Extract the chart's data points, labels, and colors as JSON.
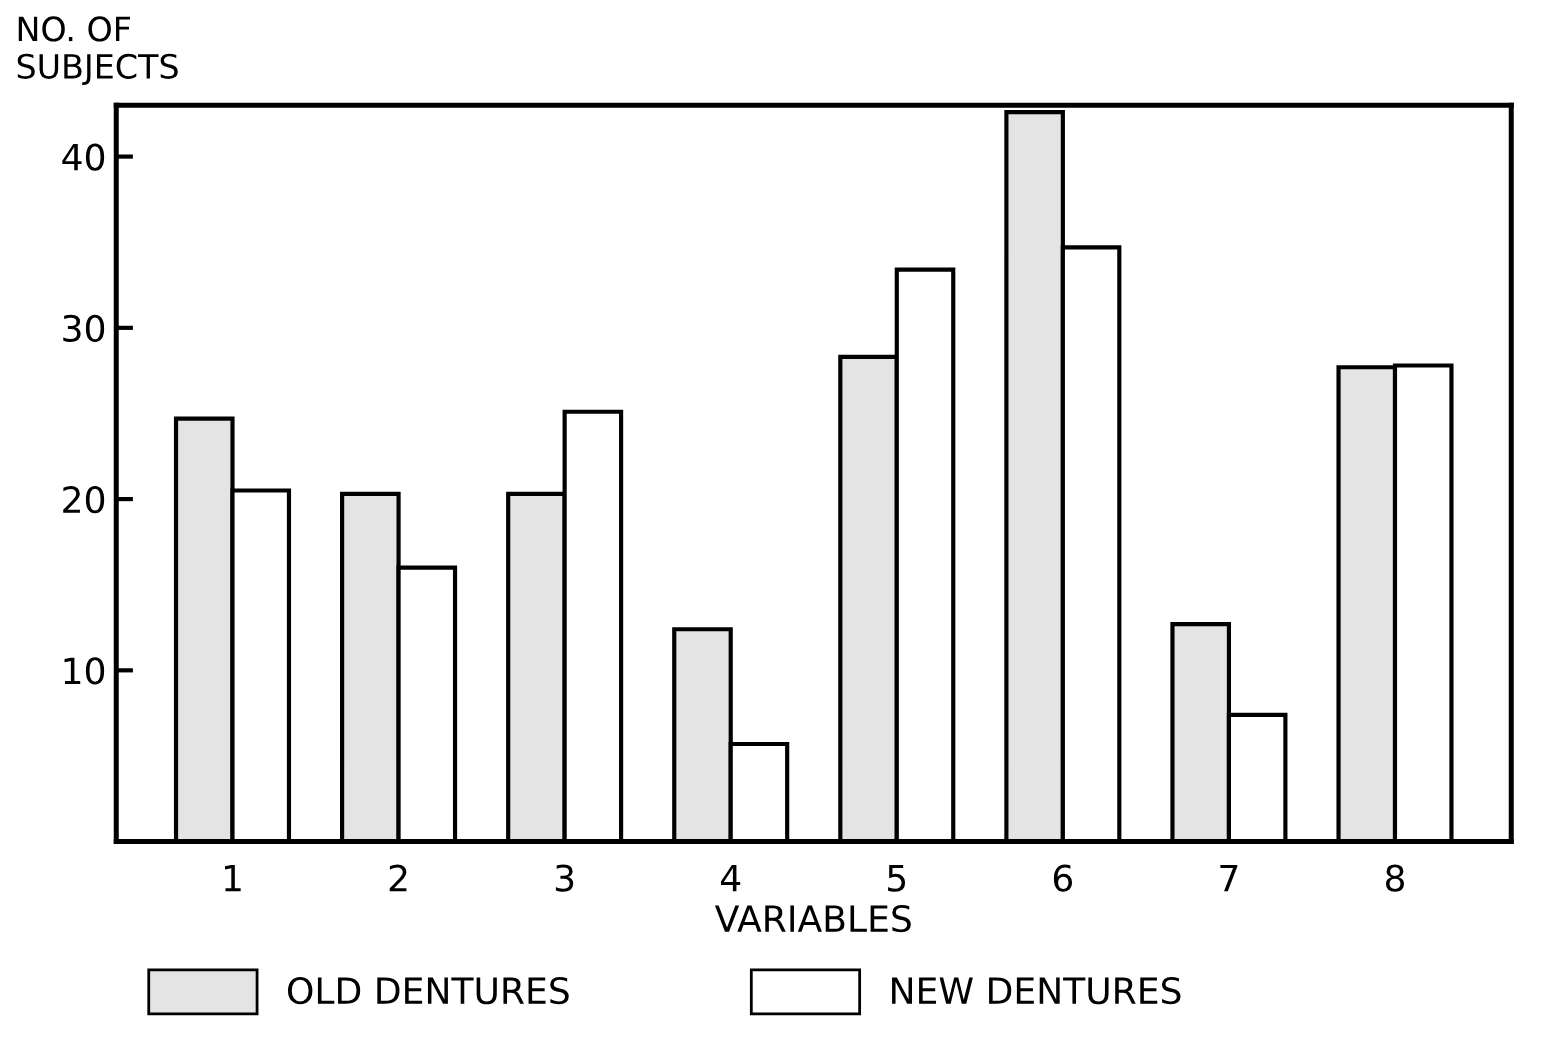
{
  "chart_data": {
    "type": "bar",
    "ylabel": "NO. OF\nSUBJECTS",
    "xlabel": "VARIABLES",
    "categories": [
      "1",
      "2",
      "3",
      "4",
      "5",
      "6",
      "7",
      "8"
    ],
    "series": [
      {
        "name": "OLD DENTURES",
        "color": "#e4e4e4",
        "values": [
          24.7,
          20.3,
          20.3,
          12.4,
          28.3,
          42.6,
          12.7,
          27.7
        ]
      },
      {
        "name": "NEW DENTURES",
        "color": "#ffffff",
        "values": [
          20.5,
          16.0,
          25.1,
          5.7,
          33.4,
          34.7,
          7.4,
          27.8
        ]
      }
    ],
    "ylim": [
      0,
      43
    ],
    "yticks": [
      10,
      20,
      30,
      40
    ],
    "grid": false,
    "legend": "bottom"
  }
}
